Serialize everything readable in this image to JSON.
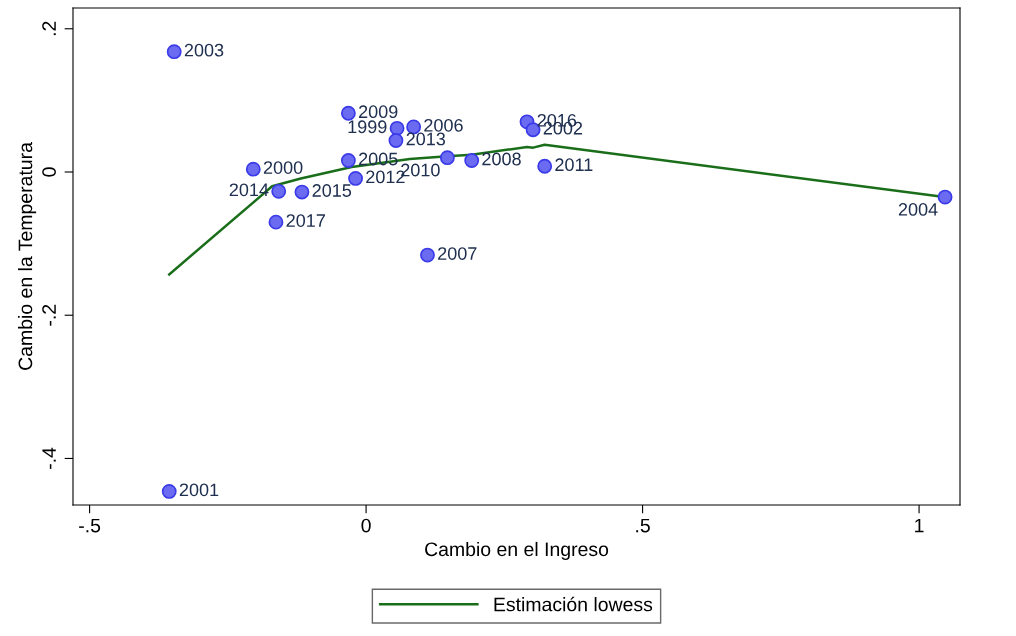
{
  "chart_data": {
    "type": "scatter",
    "xlabel": "Cambio en el Ingreso",
    "ylabel": "Cambio en la Temperatura",
    "xlim": [
      -0.53,
      1.074
    ],
    "ylim": [
      -0.465,
      0.229
    ],
    "xticks": [
      {
        "value": -0.5,
        "label": "-.5"
      },
      0,
      {
        "value": 0.5,
        "label": ".5"
      },
      1
    ],
    "yticks": [
      {
        "value": -0.4,
        "label": "-.4"
      },
      {
        "value": -0.2,
        "label": "-.2"
      },
      0,
      {
        "value": 0.2,
        "label": ".2"
      }
    ],
    "grid": false,
    "legend": "bottom",
    "marker": "circle",
    "series": [
      {
        "color": "#6b6bf2",
        "x": [
          -0.347,
          -0.032,
          0.056,
          0.086,
          0.054,
          0.291,
          0.302,
          -0.204,
          -0.032,
          0.147,
          0.191,
          0.323,
          -0.019,
          -0.158,
          -0.116,
          -0.163,
          0.111,
          -0.356,
          1.047
        ],
        "values": [
          0.168,
          0.082,
          0.061,
          0.063,
          0.044,
          0.07,
          0.059,
          0.004,
          0.016,
          0.02,
          0.016,
          0.008,
          -0.009,
          -0.027,
          -0.028,
          -0.07,
          -0.116,
          -0.446,
          -0.035
        ]
      },
      {
        "type": "line",
        "name": "Estimación lowess",
        "color": "#1a6e1a",
        "line_style": "solid",
        "marker": "none",
        "x": [
          -0.356,
          -0.17,
          -0.118,
          -0.026,
          0.079,
          0.147,
          0.191,
          0.291,
          0.302,
          0.323,
          1.047
        ],
        "values": [
          -0.143,
          -0.02,
          -0.009,
          0.007,
          0.018,
          0.022,
          0.024,
          0.035,
          0.034,
          0.038,
          -0.035
        ]
      }
    ],
    "annotations": [
      {
        "text": "2003",
        "x": -0.347,
        "y": 0.168
      },
      {
        "text": "2009",
        "x": -0.032,
        "y": 0.082
      },
      {
        "text": "1999",
        "x": 0.056,
        "y": 0.061
      },
      {
        "text": "2006",
        "x": 0.086,
        "y": 0.063
      },
      {
        "text": "2013",
        "x": 0.054,
        "y": 0.044
      },
      {
        "text": "2016",
        "x": 0.291,
        "y": 0.07
      },
      {
        "text": "2002",
        "x": 0.302,
        "y": 0.059
      },
      {
        "text": "2000",
        "x": -0.204,
        "y": 0.004
      },
      {
        "text": "2005",
        "x": -0.032,
        "y": 0.016
      },
      {
        "text": "2010",
        "x": 0.147,
        "y": 0.02
      },
      {
        "text": "2008",
        "x": 0.191,
        "y": 0.016
      },
      {
        "text": "2011",
        "x": 0.323,
        "y": 0.008
      },
      {
        "text": "2012",
        "x": -0.019,
        "y": -0.009
      },
      {
        "text": "2014",
        "x": -0.158,
        "y": -0.027
      },
      {
        "text": "2015",
        "x": -0.116,
        "y": -0.028
      },
      {
        "text": "2017",
        "x": -0.163,
        "y": -0.07
      },
      {
        "text": "2007",
        "x": 0.111,
        "y": -0.116
      },
      {
        "text": "2001",
        "x": -0.356,
        "y": -0.446
      },
      {
        "text": "2004",
        "x": 1.047,
        "y": -0.035
      }
    ]
  }
}
